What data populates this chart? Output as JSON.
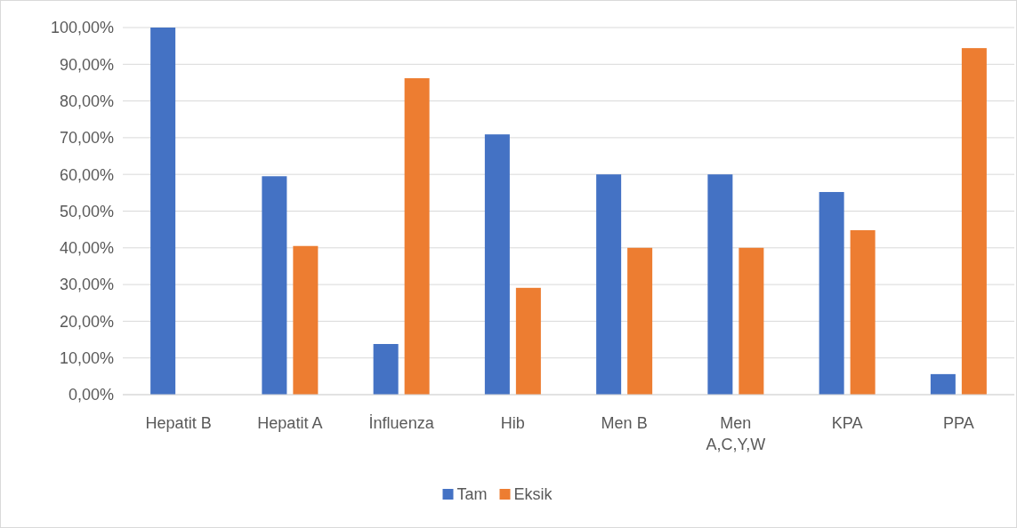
{
  "chart_data": {
    "type": "bar",
    "categories": [
      "Hepatit B",
      "Hepatit A",
      "İnfluenza",
      "Hib",
      "Men B",
      "Men A,C,Y,W",
      "KPA",
      "PPA"
    ],
    "series": [
      {
        "name": "Tam",
        "color": "#4472c4",
        "values": [
          100,
          59.5,
          13.8,
          70.9,
          60,
          60,
          55.2,
          5.6
        ]
      },
      {
        "name": "Eksik",
        "color": "#ed7d31",
        "values": [
          0,
          40.5,
          86.2,
          29.1,
          40,
          40,
          44.8,
          94.4
        ]
      }
    ],
    "ylim": [
      0,
      100
    ],
    "yticks": [
      {
        "value": 0,
        "label": "0,00%"
      },
      {
        "value": 10,
        "label": "10,00%"
      },
      {
        "value": 20,
        "label": "20,00%"
      },
      {
        "value": 30,
        "label": "30,00%"
      },
      {
        "value": 40,
        "label": "40,00%"
      },
      {
        "value": 50,
        "label": "50,00%"
      },
      {
        "value": 60,
        "label": "60,00%"
      },
      {
        "value": 70,
        "label": "70,00%"
      },
      {
        "value": 80,
        "label": "80,00%"
      },
      {
        "value": 90,
        "label": "90,00%"
      },
      {
        "value": 100,
        "label": "100,00%"
      }
    ],
    "grid": "y",
    "legend": "bottom"
  }
}
